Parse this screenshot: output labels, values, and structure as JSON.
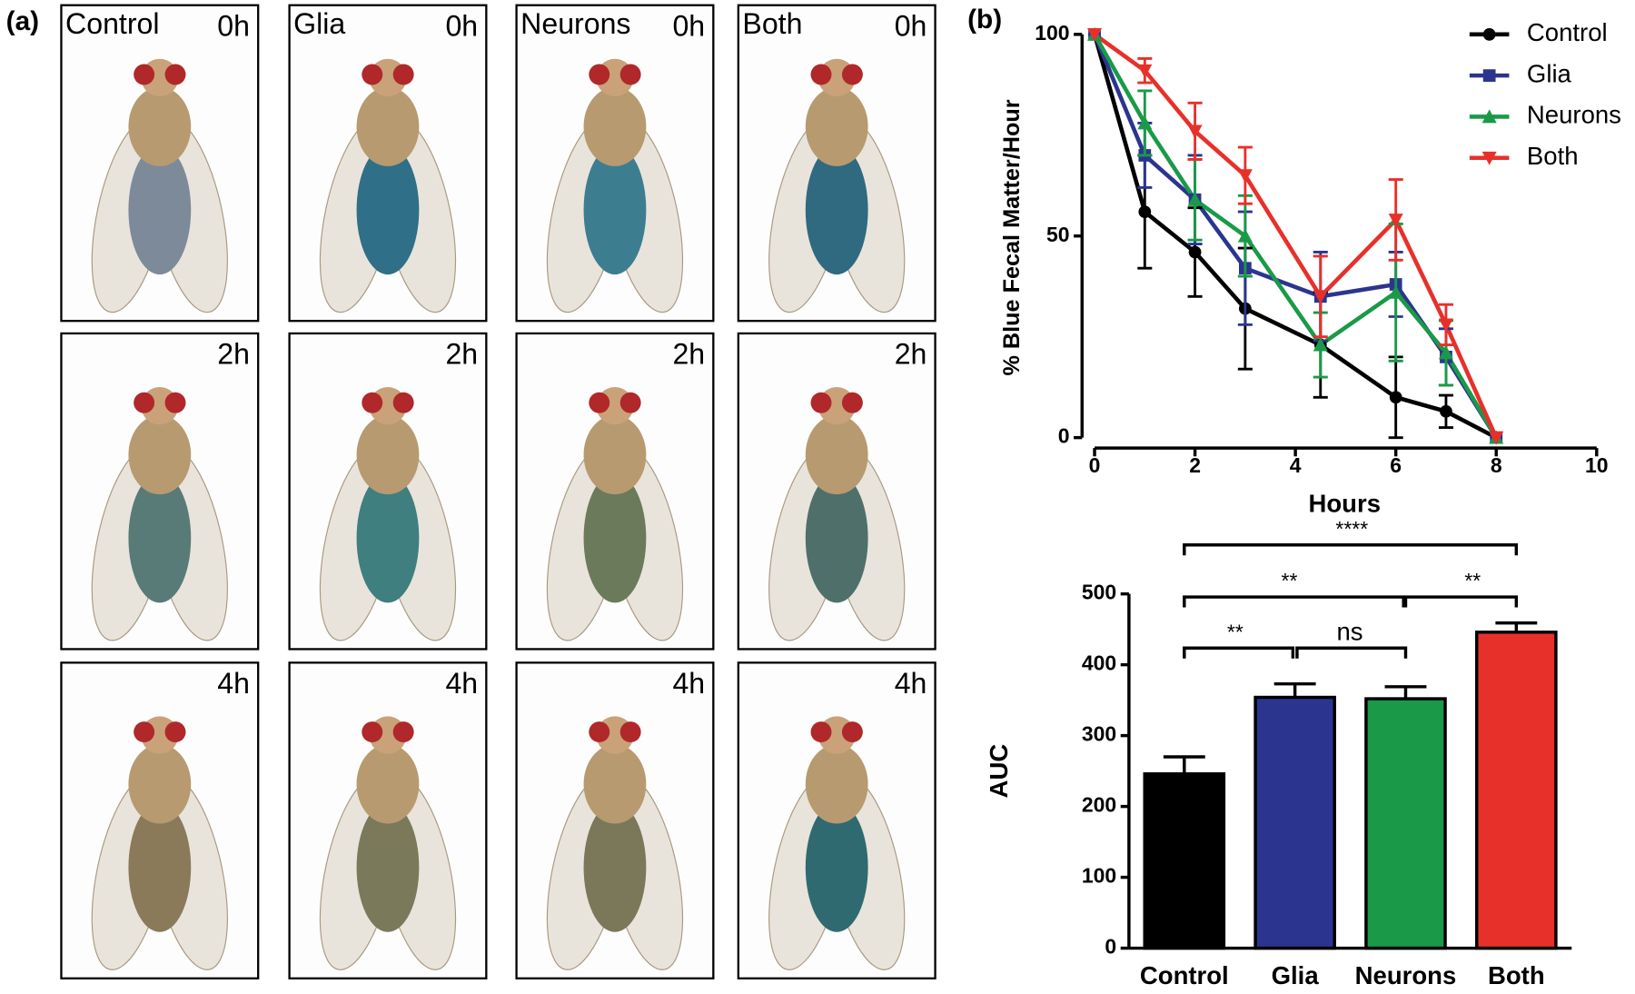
{
  "panel_a": {
    "label": "(a)",
    "columns": [
      "Control",
      "Glia",
      "Neurons",
      "Both"
    ],
    "times": [
      "0h",
      "2h",
      "4h"
    ]
  },
  "chart_data": [
    {
      "type": "line",
      "label": "(b)",
      "x_label": "Hours",
      "y_label": "% Blue Fecal Matter/Hour",
      "x": [
        0,
        1,
        2,
        3,
        4.5,
        6,
        7,
        8
      ],
      "xlim": [
        0,
        10
      ],
      "xticks": [
        0,
        2,
        4,
        6,
        8,
        10
      ],
      "ylim": [
        0,
        100
      ],
      "yticks": [
        0,
        50,
        100
      ],
      "legend": "top-right",
      "series": [
        {
          "name": "Control",
          "color": "#000000",
          "marker": "circle",
          "values": [
            100,
            56,
            46,
            32,
            23,
            10,
            6.5,
            0
          ],
          "errors": [
            null,
            14,
            11,
            15,
            13,
            10,
            4,
            null
          ]
        },
        {
          "name": "Glia",
          "color": "#2b3590",
          "marker": "square",
          "values": [
            100,
            70,
            59,
            42,
            35,
            38,
            20,
            0
          ],
          "errors": [
            null,
            8,
            11,
            14,
            11,
            8,
            7,
            null
          ]
        },
        {
          "name": "Neurons",
          "color": "#1a9a48",
          "marker": "triangle-up",
          "values": [
            100,
            78,
            59,
            50,
            23,
            36,
            21,
            0
          ],
          "errors": [
            null,
            8,
            10,
            10,
            8,
            17,
            8,
            null
          ]
        },
        {
          "name": "Both",
          "color": "#e8302a",
          "marker": "triangle-down",
          "values": [
            100,
            91,
            76,
            65,
            35,
            54,
            28,
            0
          ],
          "errors": [
            null,
            3,
            7,
            7,
            10,
            10,
            5,
            null
          ]
        }
      ]
    },
    {
      "type": "bar",
      "y_label": "AUC",
      "categories": [
        "Control",
        "Glia",
        "Neurons",
        "Both"
      ],
      "values": [
        246,
        354,
        352,
        446
      ],
      "errors": [
        24,
        19,
        17,
        13
      ],
      "colors": [
        "#000000",
        "#2b3590",
        "#1a9a48",
        "#e8302a"
      ],
      "ylim": [
        0,
        500
      ],
      "yticks": [
        0,
        100,
        200,
        300,
        400,
        500
      ],
      "comparisons": [
        "**",
        "ns",
        "**",
        "**",
        "****"
      ]
    }
  ]
}
